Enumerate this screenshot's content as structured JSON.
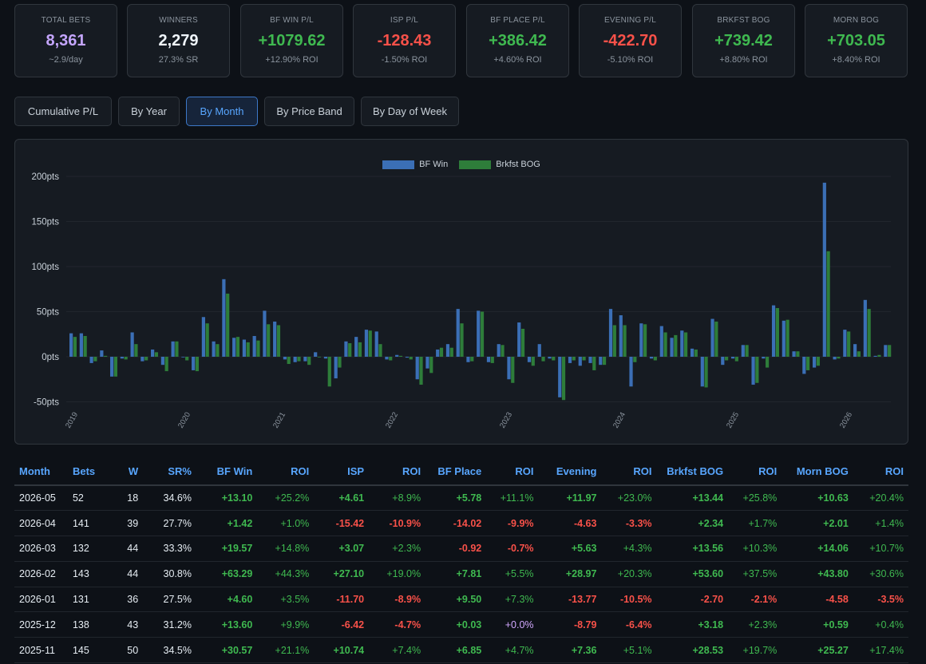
{
  "stats": [
    {
      "label": "TOTAL BETS",
      "value": "8,361",
      "sub": "~2.9/day",
      "color": "purple"
    },
    {
      "label": "WINNERS",
      "value": "2,279",
      "sub": "27.3% SR",
      "color": "white"
    },
    {
      "label": "BF WIN P/L",
      "value": "+1079.62",
      "sub": "+12.90% ROI",
      "color": "green"
    },
    {
      "label": "ISP P/L",
      "value": "-128.43",
      "sub": "-1.50% ROI",
      "color": "red"
    },
    {
      "label": "BF PLACE P/L",
      "value": "+386.42",
      "sub": "+4.60% ROI",
      "color": "green"
    },
    {
      "label": "EVENING P/L",
      "value": "-422.70",
      "sub": "-5.10% ROI",
      "color": "red"
    },
    {
      "label": "BRKFST BOG",
      "value": "+739.42",
      "sub": "+8.80% ROI",
      "color": "green"
    },
    {
      "label": "MORN BOG",
      "value": "+703.05",
      "sub": "+8.40% ROI",
      "color": "green"
    }
  ],
  "tabs": [
    "Cumulative P/L",
    "By Year",
    "By Month",
    "By Price Band",
    "By Day of Week"
  ],
  "active_tab": "By Month",
  "chart_data": {
    "type": "bar",
    "series": [
      {
        "name": "BF Win",
        "color": "#3b6fb6",
        "values": [
          26,
          26,
          -7,
          7,
          -22,
          -2,
          27,
          -5,
          8,
          -9,
          17,
          0,
          -15,
          44,
          17,
          86,
          21,
          19,
          23,
          51,
          39,
          -3,
          -6,
          -5,
          5,
          -2,
          -24,
          17,
          22,
          30,
          28,
          -3,
          2,
          -1,
          -25,
          -13,
          8,
          14,
          53,
          -6,
          51,
          -6,
          14,
          -25,
          38,
          -6,
          14,
          -2,
          -45,
          -7,
          -10,
          -7,
          -9,
          53,
          46,
          -33,
          37,
          -2,
          34,
          21,
          29,
          9,
          -33,
          42,
          -9,
          -2,
          13,
          -31,
          -2,
          57,
          40,
          6,
          -19,
          -12,
          193,
          -3,
          30,
          14,
          63,
          1,
          13
        ],
        "name_check": ""
      },
      {
        "name": "Brkfst BOG",
        "color": "#2e7d3a",
        "values": [
          22,
          23,
          -5,
          1,
          -22,
          -3,
          14,
          -4,
          5,
          -16,
          17,
          -4,
          -16,
          37,
          14,
          70,
          22,
          16,
          18,
          36,
          35,
          -8,
          -5,
          -9,
          0,
          -33,
          -12,
          15,
          16,
          29,
          14,
          -4,
          1,
          -3,
          -31,
          -18,
          10,
          10,
          37,
          -5,
          50,
          -7,
          13,
          -29,
          31,
          -10,
          -5,
          -4,
          -48,
          -4,
          -4,
          -15,
          -9,
          35,
          35,
          -6,
          36,
          -4,
          27,
          24,
          27,
          8,
          -34,
          39,
          -4,
          -5,
          13,
          -29,
          -12,
          54,
          41,
          6,
          -15,
          -10,
          117,
          -2,
          28,
          6,
          53,
          2,
          13
        ],
        "name_check": ""
      }
    ],
    "y_ticks": [
      "200pts",
      "150pts",
      "100pts",
      "50pts",
      "0pts",
      "-50pts"
    ],
    "ylim": [
      -50,
      200
    ],
    "x_ticks": [
      "2019",
      "2020",
      "2021",
      "2022",
      "2023",
      "2024",
      "2025",
      "2026"
    ],
    "legend_position": "top-center",
    "grid": true
  },
  "table": {
    "headers": [
      "Month",
      "Bets",
      "W",
      "SR%",
      "BF Win",
      "ROI",
      "ISP",
      "ROI",
      "BF Place",
      "ROI",
      "Evening",
      "ROI",
      "Brkfst BOG",
      "ROI",
      "Morn BOG",
      "ROI"
    ],
    "rows": [
      [
        "2026-05",
        "52",
        "18",
        "34.6%",
        "+13.10",
        "+25.2%",
        "+4.61",
        "+8.9%",
        "+5.78",
        "+11.1%",
        "+11.97",
        "+23.0%",
        "+13.44",
        "+25.8%",
        "+10.63",
        "+20.4%"
      ],
      [
        "2026-04",
        "141",
        "39",
        "27.7%",
        "+1.42",
        "+1.0%",
        "-15.42",
        "-10.9%",
        "-14.02",
        "-9.9%",
        "-4.63",
        "-3.3%",
        "+2.34",
        "+1.7%",
        "+2.01",
        "+1.4%"
      ],
      [
        "2026-03",
        "132",
        "44",
        "33.3%",
        "+19.57",
        "+14.8%",
        "+3.07",
        "+2.3%",
        "-0.92",
        "-0.7%",
        "+5.63",
        "+4.3%",
        "+13.56",
        "+10.3%",
        "+14.06",
        "+10.7%"
      ],
      [
        "2026-02",
        "143",
        "44",
        "30.8%",
        "+63.29",
        "+44.3%",
        "+27.10",
        "+19.0%",
        "+7.81",
        "+5.5%",
        "+28.97",
        "+20.3%",
        "+53.60",
        "+37.5%",
        "+43.80",
        "+30.6%"
      ],
      [
        "2026-01",
        "131",
        "36",
        "27.5%",
        "+4.60",
        "+3.5%",
        "-11.70",
        "-8.9%",
        "+9.50",
        "+7.3%",
        "-13.77",
        "-10.5%",
        "-2.70",
        "-2.1%",
        "-4.58",
        "-3.5%"
      ],
      [
        "2025-12",
        "138",
        "43",
        "31.2%",
        "+13.60",
        "+9.9%",
        "-6.42",
        "-4.7%",
        "+0.03",
        "+0.0%",
        "-8.79",
        "-6.4%",
        "+3.18",
        "+2.3%",
        "+0.59",
        "+0.4%"
      ],
      [
        "2025-11",
        "145",
        "50",
        "34.5%",
        "+30.57",
        "+21.1%",
        "+10.74",
        "+7.4%",
        "+6.85",
        "+4.7%",
        "+7.36",
        "+5.1%",
        "+28.53",
        "+19.7%",
        "+25.27",
        "+17.4%"
      ]
    ]
  }
}
